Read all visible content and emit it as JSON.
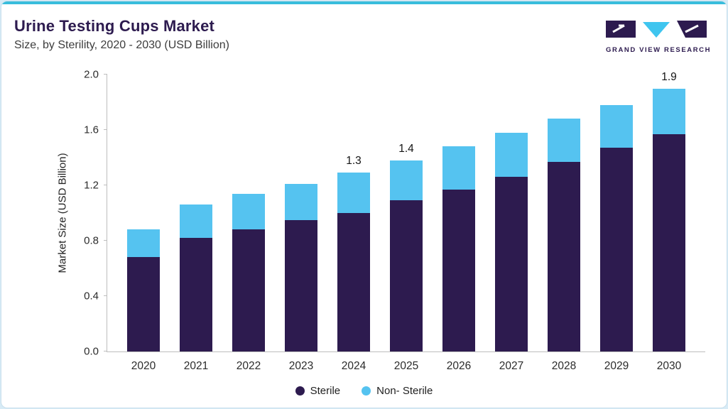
{
  "header": {
    "title": "Urine Testing Cups Market",
    "subtitle": "Size, by Sterility, 2020 - 2030 (USD Billion)",
    "brand": "GRAND VIEW RESEARCH"
  },
  "colors": {
    "accent_line": "#38bddc",
    "sterile": "#2d1b4f",
    "non_sterile": "#55c3f0",
    "title_text": "#2d1b4f"
  },
  "chart_data": {
    "type": "bar",
    "stacked": true,
    "categories": [
      "2020",
      "2021",
      "2022",
      "2023",
      "2024",
      "2025",
      "2026",
      "2027",
      "2028",
      "2029",
      "2030"
    ],
    "series": [
      {
        "name": "Sterile",
        "color": "#2d1b4f",
        "values": [
          0.68,
          0.82,
          0.88,
          0.95,
          1.0,
          1.09,
          1.17,
          1.26,
          1.37,
          1.47,
          1.57
        ]
      },
      {
        "name": "Non- Sterile",
        "color": "#55c3f0",
        "values": [
          0.2,
          0.24,
          0.26,
          0.26,
          0.29,
          0.29,
          0.31,
          0.32,
          0.31,
          0.31,
          0.33
        ]
      }
    ],
    "totals": [
      0.88,
      1.06,
      1.14,
      1.21,
      1.29,
      1.38,
      1.48,
      1.58,
      1.68,
      1.78,
      1.9
    ],
    "data_labels": {
      "2024": "1.3",
      "2025": "1.4",
      "2030": "1.9"
    },
    "title": "Urine Testing Cups Market Size, by Sterility, 2020 - 2030 (USD Billion)",
    "xlabel": "",
    "ylabel": "Market Size (USD Billion)",
    "ylim": [
      0,
      2.0
    ],
    "yticks": [
      "0.0",
      "0.4",
      "0.8",
      "1.2",
      "1.6",
      "2.0"
    ],
    "grid": false,
    "legend_position": "bottom"
  }
}
